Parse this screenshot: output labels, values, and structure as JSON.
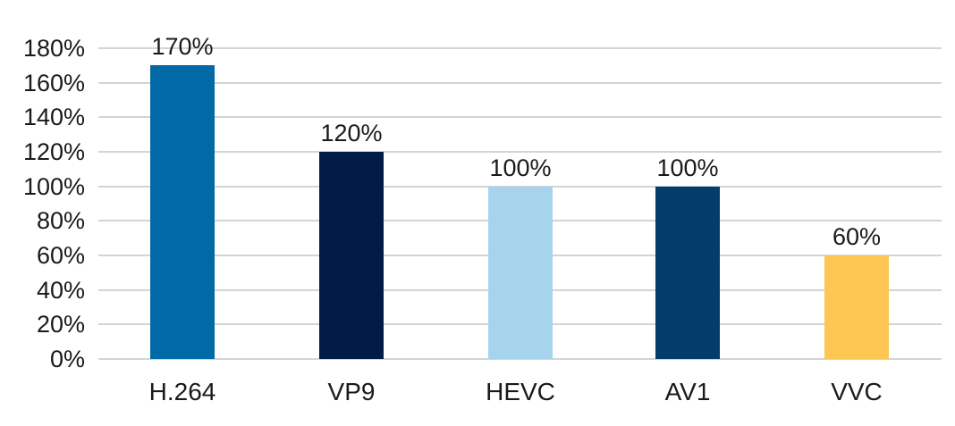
{
  "chart_data": {
    "type": "bar",
    "title": "",
    "xlabel": "",
    "ylabel": "",
    "categories": [
      "H.264",
      "VP9",
      "HEVC",
      "AV1",
      "VVC"
    ],
    "values": [
      170,
      120,
      100,
      100,
      60
    ],
    "value_labels": [
      "170%",
      "120%",
      "100%",
      "100%",
      "60%"
    ],
    "colors": [
      "#0169a5",
      "#001c46",
      "#a6d4ed",
      "#023d6c",
      "#fec652"
    ],
    "ylim": [
      0,
      180
    ],
    "yticks": [
      0,
      20,
      40,
      60,
      80,
      100,
      120,
      140,
      160,
      180
    ],
    "ytick_labels": [
      "0%",
      "20%",
      "40%",
      "60%",
      "80%",
      "100%",
      "120%",
      "140%",
      "160%",
      "180%"
    ],
    "grid": true,
    "legend": null
  }
}
